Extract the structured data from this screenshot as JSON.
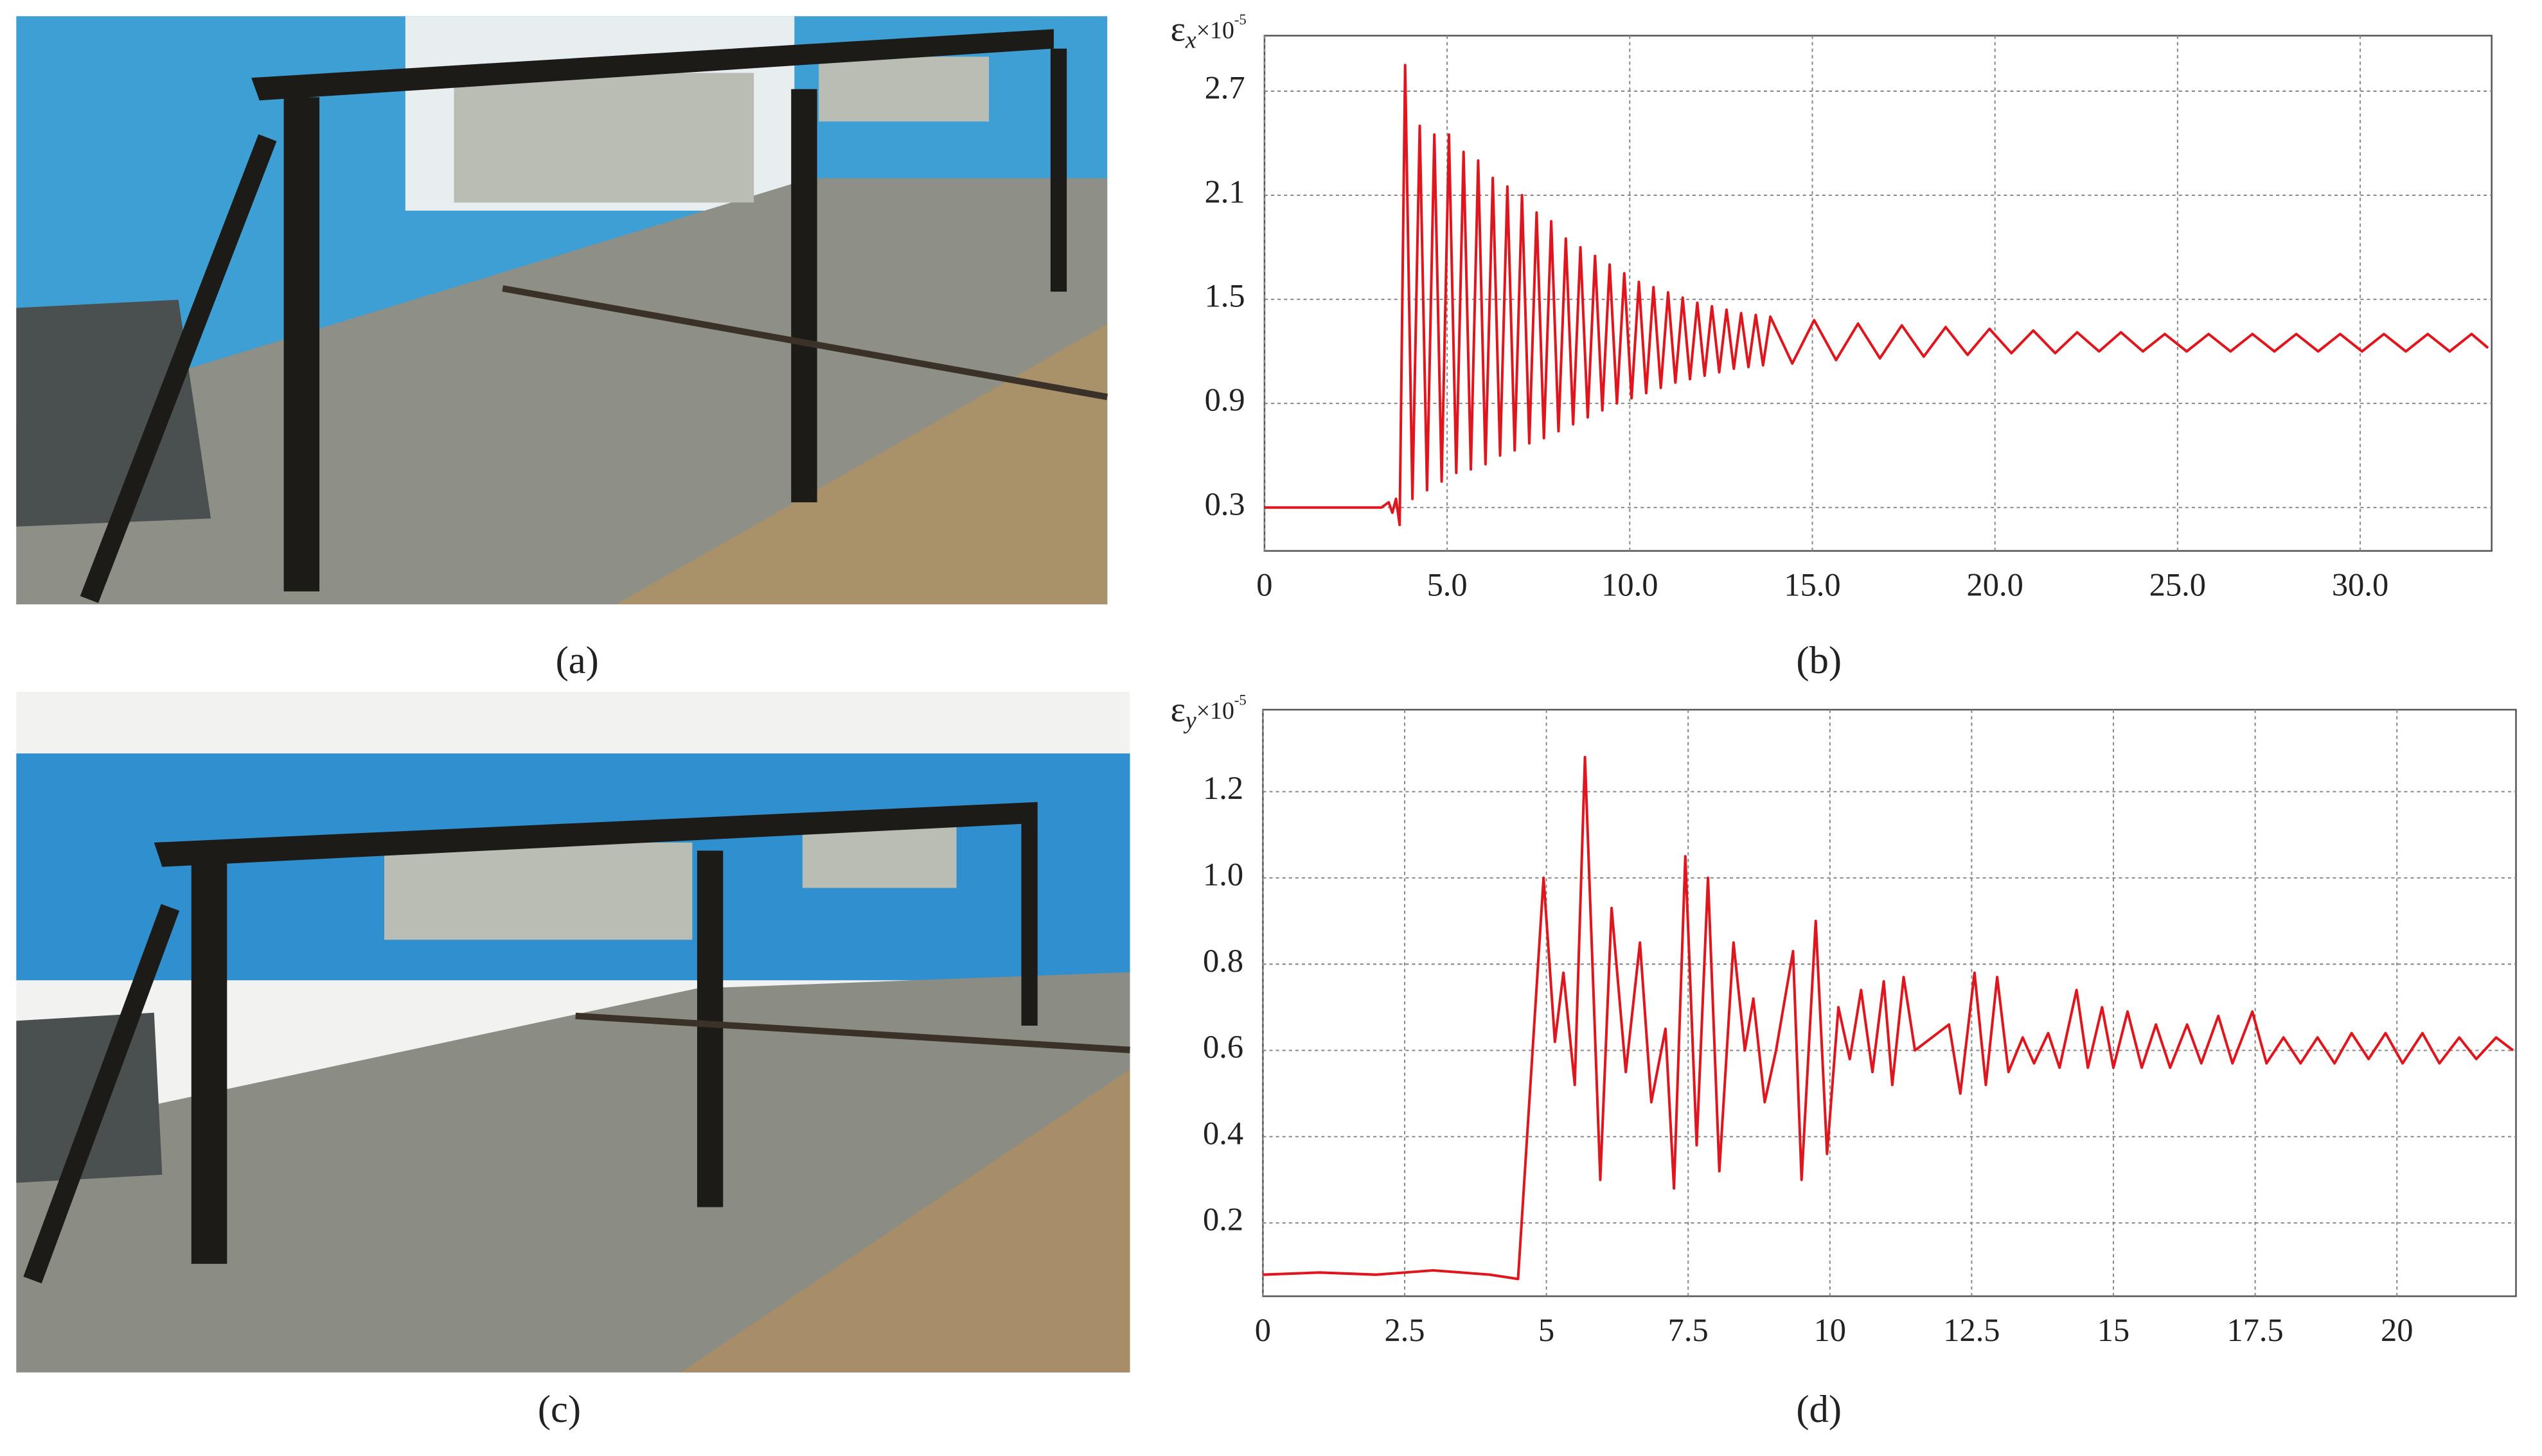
{
  "figure_captions": [
    "(a)",
    "(b)",
    "(c)",
    "(d)"
  ],
  "chart_data": [
    {
      "type": "line",
      "y_label": {
        "symbol": "ε",
        "subscript": "x",
        "base": "×10",
        "exponent": "-5"
      },
      "color": "#e0161e",
      "xlim": [
        0,
        33.6
      ],
      "ylim": [
        0.05,
        3.02
      ],
      "xticks": [
        0,
        {
          "value": 5,
          "label": "5.0"
        },
        {
          "value": 10,
          "label": "10.0"
        },
        {
          "value": 15,
          "label": "15.0"
        },
        {
          "value": 20,
          "label": "20.0"
        },
        {
          "value": 25,
          "label": "25.0"
        },
        {
          "value": 30,
          "label": "30.0"
        }
      ],
      "yticks": [
        0.3,
        0.9,
        1.5,
        2.1,
        2.7
      ],
      "grid": true,
      "x": [
        0,
        3.2,
        3.4,
        3.5,
        3.6,
        3.7,
        3.85,
        4.05,
        4.25,
        4.45,
        4.65,
        4.85,
        5.05,
        5.25,
        5.45,
        5.65,
        5.85,
        6.05,
        6.25,
        6.45,
        6.65,
        6.85,
        7.05,
        7.25,
        7.45,
        7.65,
        7.85,
        8.05,
        8.25,
        8.45,
        8.65,
        8.85,
        9.05,
        9.25,
        9.45,
        9.65,
        9.85,
        10.05,
        10.25,
        10.45,
        10.65,
        10.85,
        11.05,
        11.25,
        11.45,
        11.65,
        11.85,
        12.05,
        12.25,
        12.45,
        12.65,
        12.85,
        13.05,
        13.25,
        13.45,
        13.65,
        13.85,
        14.45,
        15.05,
        15.65,
        16.25,
        16.85,
        17.45,
        18.05,
        18.65,
        19.25,
        19.85,
        20.45,
        21.05,
        21.65,
        22.25,
        22.85,
        23.45,
        24.05,
        24.65,
        25.25,
        25.85,
        26.45,
        27.05,
        27.65,
        28.25,
        28.85,
        29.45,
        30.05,
        30.65,
        31.25,
        31.85,
        32.45,
        33.05,
        33.5
      ],
      "values": [
        0.3,
        0.3,
        0.33,
        0.27,
        0.35,
        0.2,
        2.85,
        0.35,
        2.5,
        0.4,
        2.45,
        0.45,
        2.45,
        0.5,
        2.35,
        0.52,
        2.3,
        0.55,
        2.2,
        0.6,
        2.15,
        0.63,
        2.1,
        0.67,
        2.0,
        0.7,
        1.95,
        0.74,
        1.85,
        0.78,
        1.8,
        0.82,
        1.75,
        0.86,
        1.7,
        0.9,
        1.65,
        0.93,
        1.6,
        0.96,
        1.57,
        0.99,
        1.54,
        1.02,
        1.51,
        1.04,
        1.48,
        1.06,
        1.46,
        1.08,
        1.44,
        1.1,
        1.42,
        1.11,
        1.41,
        1.12,
        1.4,
        1.13,
        1.38,
        1.15,
        1.36,
        1.16,
        1.35,
        1.17,
        1.34,
        1.18,
        1.33,
        1.19,
        1.32,
        1.19,
        1.31,
        1.2,
        1.31,
        1.2,
        1.3,
        1.2,
        1.3,
        1.2,
        1.3,
        1.2,
        1.3,
        1.2,
        1.3,
        1.2,
        1.3,
        1.2,
        1.3,
        1.2,
        1.3,
        1.22
      ]
    },
    {
      "type": "line",
      "y_label": {
        "symbol": "ε",
        "subscript": "y",
        "base": "×10",
        "exponent": "-5"
      },
      "color": "#e0161e",
      "xlim": [
        0,
        22.1
      ],
      "ylim": [
        0.03,
        1.39
      ],
      "xticks": [
        0,
        2.5,
        5,
        7.5,
        10,
        12.5,
        15,
        17.5,
        20
      ],
      "yticks": [
        0.2,
        0.4,
        0.6,
        0.8,
        {
          "value": 1,
          "label": "1.0"
        },
        1.2
      ],
      "grid": true,
      "x": [
        0,
        1,
        2,
        3,
        4,
        4.5,
        4.95,
        5.15,
        5.3,
        5.5,
        5.68,
        5.95,
        6.15,
        6.4,
        6.65,
        6.85,
        7.1,
        7.25,
        7.45,
        7.65,
        7.85,
        8.05,
        8.3,
        8.5,
        8.65,
        8.85,
        9.05,
        9.35,
        9.5,
        9.75,
        9.95,
        10.15,
        10.35,
        10.55,
        10.75,
        10.95,
        11.1,
        11.3,
        11.5,
        11.8,
        12.1,
        12.3,
        12.55,
        12.75,
        12.95,
        13.15,
        13.4,
        13.6,
        13.85,
        14.05,
        14.35,
        14.55,
        14.8,
        15.0,
        15.25,
        15.5,
        15.75,
        16.0,
        16.3,
        16.55,
        16.85,
        17.1,
        17.45,
        17.7,
        18.0,
        18.3,
        18.6,
        18.9,
        19.2,
        19.5,
        19.8,
        20.1,
        20.45,
        20.75,
        21.1,
        21.4,
        21.75,
        22.05
      ],
      "values": [
        0.08,
        0.085,
        0.08,
        0.09,
        0.08,
        0.07,
        1.0,
        0.62,
        0.78,
        0.52,
        1.28,
        0.3,
        0.93,
        0.55,
        0.85,
        0.48,
        0.65,
        0.28,
        1.05,
        0.38,
        1.0,
        0.32,
        0.85,
        0.6,
        0.72,
        0.48,
        0.6,
        0.83,
        0.3,
        0.9,
        0.36,
        0.7,
        0.58,
        0.74,
        0.55,
        0.76,
        0.52,
        0.77,
        0.6,
        0.63,
        0.66,
        0.5,
        0.78,
        0.52,
        0.77,
        0.55,
        0.63,
        0.57,
        0.64,
        0.56,
        0.74,
        0.56,
        0.7,
        0.56,
        0.69,
        0.56,
        0.66,
        0.56,
        0.66,
        0.57,
        0.68,
        0.57,
        0.69,
        0.57,
        0.63,
        0.57,
        0.63,
        0.57,
        0.64,
        0.58,
        0.64,
        0.57,
        0.64,
        0.57,
        0.63,
        0.58,
        0.63,
        0.6
      ]
    }
  ]
}
